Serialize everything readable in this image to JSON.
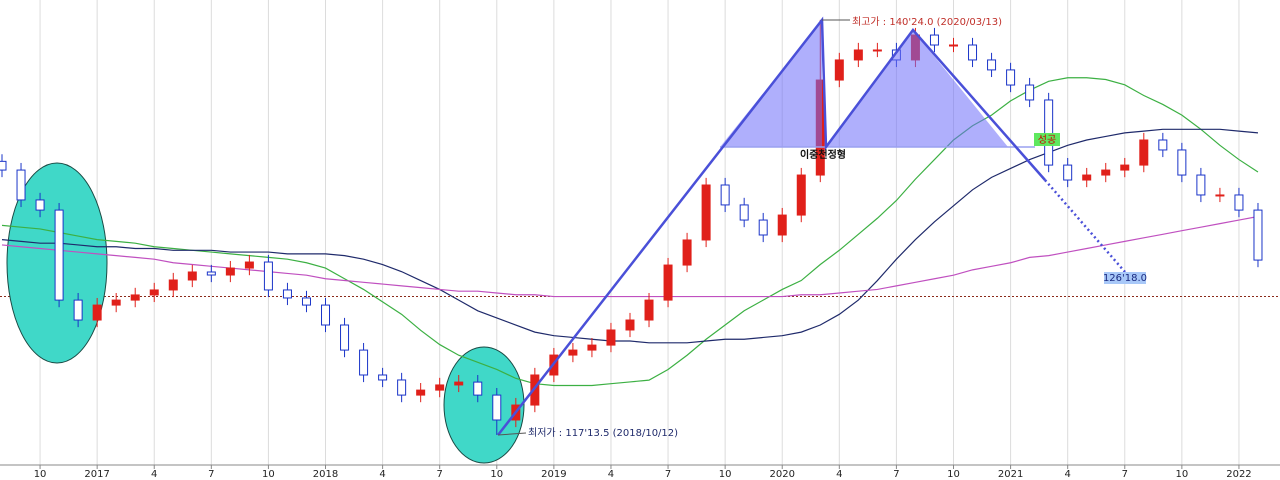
{
  "chart_data": {
    "type": "candlestick",
    "categories": [
      null,
      null,
      "10",
      null,
      null,
      "2017",
      null,
      null,
      "4",
      null,
      null,
      "7",
      null,
      null,
      "10",
      null,
      null,
      "2018",
      null,
      null,
      "4",
      null,
      null,
      "7",
      null,
      null,
      "10",
      null,
      null,
      "2019",
      null,
      null,
      "4",
      null,
      null,
      "7",
      null,
      null,
      "10",
      null,
      null,
      "2020",
      null,
      null,
      "4",
      null,
      null,
      "7",
      null,
      null,
      "10",
      null,
      null,
      "2021",
      null,
      null,
      "4",
      null,
      null,
      "7",
      null,
      null,
      "10",
      null,
      null,
      "2022",
      null
    ],
    "open": [
      132.8,
      132.31,
      130.63,
      130.06,
      125.0,
      123.88,
      124.72,
      125.0,
      125.29,
      125.57,
      126.13,
      126.58,
      126.41,
      126.8,
      127.14,
      125.57,
      125.12,
      124.72,
      123.6,
      122.19,
      120.79,
      120.51,
      119.66,
      119.94,
      120.23,
      120.39,
      119.66,
      118.26,
      119.1,
      120.79,
      121.91,
      122.19,
      122.47,
      123.32,
      123.88,
      125.0,
      126.97,
      128.38,
      131.47,
      130.35,
      129.5,
      128.66,
      129.78,
      132.03,
      137.37,
      138.5,
      139.06,
      139.06,
      138.5,
      139.9,
      139.34,
      139.34,
      138.5,
      137.94,
      137.09,
      136.25,
      132.59,
      131.75,
      132.03,
      132.31,
      132.59,
      134.0,
      133.44,
      132.03,
      130.91,
      130.91,
      130.06
    ],
    "high": [
      133.2,
      132.71,
      131.03,
      130.46,
      125.4,
      125.12,
      125.4,
      125.69,
      125.97,
      126.53,
      126.98,
      126.98,
      127.2,
      127.54,
      127.54,
      125.97,
      125.52,
      125.12,
      124.0,
      122.59,
      121.19,
      120.91,
      120.34,
      120.63,
      120.79,
      120.79,
      120.06,
      119.5,
      121.19,
      122.31,
      122.59,
      122.87,
      123.72,
      124.28,
      125.4,
      127.37,
      128.78,
      131.87,
      131.87,
      130.75,
      129.9,
      130.18,
      132.43,
      140.75,
      138.9,
      139.46,
      139.46,
      139.46,
      140.3,
      140.3,
      139.74,
      139.74,
      138.9,
      138.34,
      137.49,
      136.65,
      132.99,
      132.43,
      132.71,
      132.99,
      134.4,
      134.4,
      133.84,
      132.43,
      131.31,
      131.31,
      130.46
    ],
    "low": [
      131.91,
      130.23,
      129.66,
      124.6,
      123.48,
      123.48,
      124.32,
      124.6,
      124.89,
      125.17,
      125.73,
      126.01,
      126.01,
      126.4,
      125.17,
      124.72,
      124.32,
      123.2,
      121.79,
      120.39,
      120.11,
      119.26,
      119.26,
      119.54,
      119.83,
      119.26,
      117.42,
      117.86,
      118.7,
      120.39,
      121.51,
      121.79,
      122.07,
      122.92,
      123.48,
      124.6,
      126.57,
      127.98,
      129.95,
      129.1,
      128.26,
      128.26,
      129.38,
      131.63,
      136.97,
      138.1,
      138.66,
      138.1,
      138.1,
      138.94,
      138.94,
      138.1,
      137.54,
      136.69,
      135.85,
      132.19,
      131.35,
      131.35,
      131.63,
      131.91,
      132.19,
      133.04,
      131.63,
      130.51,
      130.51,
      129.66,
      126.85
    ],
    "close": [
      132.31,
      130.63,
      130.06,
      125.0,
      123.88,
      124.72,
      125.0,
      125.29,
      125.57,
      126.13,
      126.58,
      126.41,
      126.8,
      127.14,
      125.57,
      125.12,
      124.72,
      123.6,
      122.19,
      120.79,
      120.51,
      119.66,
      119.94,
      120.23,
      120.39,
      119.66,
      118.26,
      119.1,
      120.79,
      121.91,
      122.19,
      122.47,
      123.32,
      123.88,
      125.0,
      126.97,
      128.38,
      131.47,
      130.35,
      129.5,
      128.66,
      129.78,
      132.03,
      137.37,
      138.5,
      139.06,
      139.06,
      138.5,
      139.9,
      139.34,
      139.34,
      138.5,
      137.94,
      137.09,
      136.25,
      132.59,
      131.75,
      132.03,
      132.31,
      132.59,
      134.0,
      133.44,
      132.03,
      130.91,
      130.91,
      130.06,
      127.25
    ],
    "up_color": "#e0201a",
    "down_color": "#1a34c8",
    "moving_averages": [
      {
        "color": "#3cb043",
        "values": [
          129.2,
          129.1,
          129.0,
          128.8,
          128.6,
          128.4,
          128.3,
          128.2,
          128.0,
          127.9,
          127.8,
          127.7,
          127.6,
          127.5,
          127.4,
          127.3,
          127.1,
          126.8,
          126.2,
          125.6,
          124.9,
          124.2,
          123.3,
          122.5,
          121.9,
          121.5,
          121.1,
          120.6,
          120.3,
          120.2,
          120.2,
          120.2,
          120.3,
          120.4,
          120.5,
          121.1,
          121.9,
          122.8,
          123.6,
          124.4,
          125.0,
          125.6,
          126.1,
          127.0,
          127.8,
          128.7,
          129.6,
          130.6,
          131.8,
          132.9,
          134.0,
          134.8,
          135.4,
          136.2,
          136.8,
          137.3,
          137.5,
          137.5,
          137.4,
          137.1,
          136.5,
          136.0,
          135.4,
          134.6,
          133.7,
          132.9,
          132.2
        ]
      },
      {
        "color": "#1f2a6b",
        "values": [
          128.4,
          128.3,
          128.2,
          128.2,
          128.1,
          128.0,
          128.0,
          127.9,
          127.9,
          127.8,
          127.8,
          127.8,
          127.7,
          127.7,
          127.7,
          127.6,
          127.6,
          127.6,
          127.5,
          127.3,
          127.0,
          126.6,
          126.1,
          125.6,
          125.0,
          124.4,
          124.0,
          123.6,
          123.2,
          123.0,
          122.9,
          122.8,
          122.7,
          122.7,
          122.6,
          122.6,
          122.6,
          122.7,
          122.8,
          122.8,
          122.9,
          123.0,
          123.2,
          123.6,
          124.2,
          125.0,
          126.1,
          127.3,
          128.4,
          129.4,
          130.3,
          131.2,
          131.9,
          132.4,
          132.9,
          133.3,
          133.7,
          134.0,
          134.2,
          134.4,
          134.5,
          134.6,
          134.6,
          134.6,
          134.6,
          134.5,
          134.4
        ]
      },
      {
        "color": "#c050c0",
        "values": [
          128.1,
          128.0,
          127.9,
          127.8,
          127.7,
          127.6,
          127.5,
          127.4,
          127.3,
          127.1,
          127.0,
          126.9,
          126.8,
          126.7,
          126.6,
          126.5,
          126.4,
          126.2,
          126.1,
          126.0,
          125.9,
          125.8,
          125.7,
          125.6,
          125.5,
          125.5,
          125.4,
          125.3,
          125.3,
          125.2,
          125.2,
          125.2,
          125.2,
          125.2,
          125.2,
          125.2,
          125.2,
          125.2,
          125.2,
          125.2,
          125.2,
          125.2,
          125.3,
          125.3,
          125.4,
          125.5,
          125.6,
          125.8,
          126.0,
          126.2,
          126.4,
          126.7,
          126.9,
          127.1,
          127.4,
          127.5,
          127.7,
          127.9,
          128.1,
          128.3,
          128.5,
          128.7,
          128.9,
          129.1,
          129.3,
          129.5,
          129.7
        ]
      }
    ],
    "reference_line": 125.2,
    "ylim": [
      115.73,
      141.87
    ],
    "grid": true,
    "annotations": [
      "최고가 : 140'24.0 (2020/03/13)",
      "최저가 : 117'13.5 (2018/10/12)",
      "이중천정형",
      "성공",
      "126'18.0"
    ]
  }
}
